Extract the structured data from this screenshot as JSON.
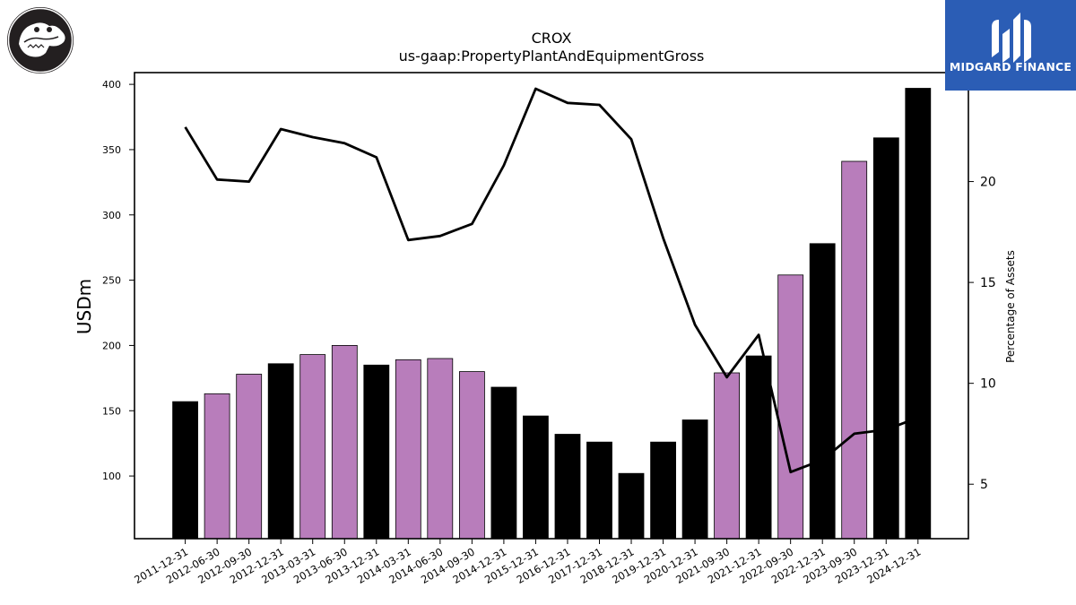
{
  "header": {
    "title": "CROX",
    "subtitle": "us-gaap:PropertyPlantAndEquipmentGross"
  },
  "brand": {
    "name": "MIDGARD FINANCE",
    "color": "#2b5db5",
    "logo_icon": "midgard-logo-icon",
    "company_logo_icon": "crocodile-logo-icon"
  },
  "chart_data": {
    "type": "bar",
    "title": "CROX",
    "subtitle": "us-gaap:PropertyPlantAndEquipmentGross",
    "ylabel": "USDm",
    "y2label": "Percentage of Assets",
    "ylim": [
      52,
      409
    ],
    "y2lim": [
      2.3,
      25.4
    ],
    "yticks": [
      100,
      150,
      200,
      250,
      300,
      350,
      400
    ],
    "y2ticks": [
      5,
      10,
      15,
      20
    ],
    "grid": false,
    "categories": [
      "2011-12-31",
      "2012-06-30",
      "2012-09-30",
      "2012-12-31",
      "2013-03-31",
      "2013-06-30",
      "2013-12-31",
      "2014-03-31",
      "2014-06-30",
      "2014-09-30",
      "2014-12-31",
      "2015-12-31",
      "2016-12-31",
      "2017-12-31",
      "2018-12-31",
      "2019-12-31",
      "2020-12-31",
      "2021-09-30",
      "2021-12-31",
      "2022-09-30",
      "2022-12-31",
      "2023-09-30",
      "2023-12-31",
      "2024-12-31"
    ],
    "series": [
      {
        "type": "bar",
        "values": [
          157,
          163,
          178,
          186,
          193,
          200,
          185,
          189,
          190,
          180,
          168,
          146,
          132,
          126,
          102,
          126,
          143,
          179,
          192,
          254,
          278,
          341,
          359,
          397
        ],
        "colors": [
          "#000000",
          "#b87dbb",
          "#b87dbb",
          "#000000",
          "#b87dbb",
          "#b87dbb",
          "#000000",
          "#b87dbb",
          "#b87dbb",
          "#b87dbb",
          "#000000",
          "#000000",
          "#000000",
          "#000000",
          "#000000",
          "#000000",
          "#000000",
          "#b87dbb",
          "#000000",
          "#b87dbb",
          "#000000",
          "#b87dbb",
          "#000000",
          "#000000"
        ]
      },
      {
        "type": "line",
        "axis": "right",
        "color": "#000000",
        "values": [
          22.7,
          20.1,
          20.0,
          22.6,
          22.2,
          21.9,
          21.2,
          17.1,
          17.3,
          17.9,
          20.8,
          24.6,
          23.9,
          23.8,
          22.1,
          17.2,
          12.9,
          10.3,
          12.4,
          5.6,
          6.2,
          7.5,
          7.7,
          8.3
        ]
      }
    ]
  }
}
